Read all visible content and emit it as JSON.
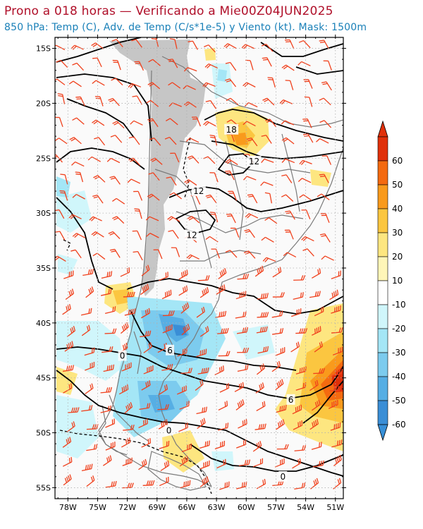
{
  "header": {
    "title": "Prono a 018 horas — Verificando a Mie00Z04JUN2025",
    "subtitle": "850 hPa: Temp (C), Adv. de Temp (C/s*1e-5) y Viento (kt). Mask: 1500m"
  },
  "axes": {
    "lat_labels": [
      "15S",
      "20S",
      "25S",
      "30S",
      "35S",
      "40S",
      "45S",
      "50S",
      "55S"
    ],
    "lon_labels": [
      "78W",
      "75W",
      "72W",
      "69W",
      "66W",
      "63W",
      "60W",
      "57W",
      "54W",
      "51W"
    ]
  },
  "colorbar": {
    "labels": [
      "60",
      "50",
      "40",
      "30",
      "20",
      "10",
      "-10",
      "-20",
      "-30",
      "-40",
      "-50",
      "-60"
    ],
    "colors": [
      "#e0300a",
      "#f46a10",
      "#f99a1c",
      "#fbc640",
      "#fde680",
      "#fff6b8",
      "#ffffff",
      "#d0f6fb",
      "#a4e6f6",
      "#7ccbee",
      "#56aee4",
      "#3a8ed6",
      "#3890d8"
    ]
  },
  "contour_labels": [
    {
      "text": "18",
      "lat": -22.4,
      "lon": -61.5
    },
    {
      "text": "12",
      "lat": -25.3,
      "lon": -59.2
    },
    {
      "text": "12",
      "lat": -28.0,
      "lon": -64.8
    },
    {
      "text": "12",
      "lat": -32.0,
      "lon": -65.5
    },
    {
      "text": "6",
      "lat": -42.5,
      "lon": -67.7
    },
    {
      "text": "0",
      "lat": -43.0,
      "lon": -72.5
    },
    {
      "text": "6",
      "lat": -47.0,
      "lon": -55.5
    },
    {
      "text": "0",
      "lat": -49.8,
      "lon": -67.8
    },
    {
      "text": "0",
      "lat": -54.0,
      "lon": -56.3
    }
  ],
  "colors": {
    "title": "#b0102a",
    "subtitle": "#1a80b8",
    "wind_barb": "#f0401c",
    "terrain_mask": "#c6c6c6",
    "coastline": "#7a7a7a",
    "isotherm": "#000000"
  }
}
